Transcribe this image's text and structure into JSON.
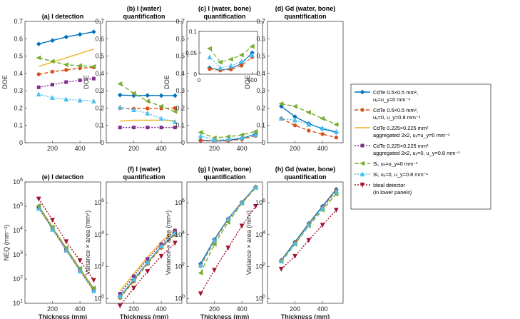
{
  "figure": {
    "xlabel": "Thickness (mm)",
    "legend_position": "right",
    "legend": [
      {
        "key": "cdte05",
        "lines": [
          "CdTe 0.5×0.5 mm²,",
          "uₓ=u_y=0 mm⁻¹"
        ],
        "color": "#0072BD",
        "dash": "",
        "marker": "diamond"
      },
      {
        "key": "cdte05u",
        "lines": [
          "CdTe 0.5×0.5 mm²,",
          "uₓ=0, u_y=0.8 mm⁻¹"
        ],
        "color": "#D95319",
        "dash": "5,3",
        "marker": "circle"
      },
      {
        "key": "cdte0225",
        "lines": [
          "CdTe 0.225×0.225 mm²",
          "aggregated 2x2, uₓ=u_y=0 mm⁻¹"
        ],
        "color": "#EDB120",
        "dash": "",
        "marker": "none"
      },
      {
        "key": "cdte0225u",
        "lines": [
          "CdTe 0.225×0.225 mm²",
          "aggregated 2x2, uₓ=0, u_y=0.8 mm⁻¹"
        ],
        "color": "#7E2F8E",
        "dash": "2,2",
        "marker": "square"
      },
      {
        "key": "si",
        "lines": [
          "Si, uₓ=u_y=0 mm⁻¹"
        ],
        "color": "#77AC30",
        "dash": "6,3",
        "marker": "triangle-left"
      },
      {
        "key": "siu",
        "lines": [
          "Si, uₓ=0, u_y=0.8 mm⁻¹"
        ],
        "color": "#4DBEEE",
        "dash": "2,2",
        "marker": "triangle-up"
      },
      {
        "key": "ideal",
        "lines": [
          "Ideal detector",
          "(in lower panels)"
        ],
        "color": "#A2142F",
        "dash": "2,2",
        "marker": "triangle-down"
      }
    ]
  },
  "chart_data": [
    {
      "id": "a",
      "type": "line",
      "title": [
        "(a) I detection"
      ],
      "ylabel": "DOE",
      "xlim": [
        0,
        550
      ],
      "ylim": [
        0,
        0.7
      ],
      "xticks": [
        200,
        400
      ],
      "yticks": [
        0,
        0.1,
        0.2,
        0.3,
        0.4,
        0.5,
        0.6,
        0.7
      ],
      "yscale": "linear",
      "x": [
        100,
        200,
        300,
        400,
        500
      ],
      "series": [
        {
          "key": "cdte05",
          "values": [
            0.57,
            0.59,
            0.61,
            0.625,
            0.64
          ]
        },
        {
          "key": "cdte05u",
          "values": [
            0.395,
            0.41,
            0.42,
            0.43,
            0.435
          ]
        },
        {
          "key": "cdte0225",
          "values": [
            0.44,
            0.465,
            0.49,
            0.515,
            0.54
          ]
        },
        {
          "key": "cdte0225u",
          "values": [
            0.32,
            0.335,
            0.35,
            0.36,
            0.37
          ]
        },
        {
          "key": "si",
          "values": [
            0.49,
            0.47,
            0.45,
            0.445,
            0.44
          ]
        },
        {
          "key": "siu",
          "values": [
            0.28,
            0.26,
            0.25,
            0.245,
            0.24
          ]
        }
      ]
    },
    {
      "id": "b",
      "type": "line",
      "title": [
        "(b) I (water)",
        "quantification"
      ],
      "ylabel": "DOE",
      "xlim": [
        0,
        550
      ],
      "ylim": [
        0,
        0.7
      ],
      "xticks": [
        200,
        400
      ],
      "yticks": [
        0,
        0.1,
        0.2,
        0.3,
        0.4,
        0.5,
        0.6,
        0.7
      ],
      "yscale": "linear",
      "x": [
        100,
        200,
        300,
        400,
        500
      ],
      "series": [
        {
          "key": "cdte05",
          "values": [
            0.275,
            0.272,
            0.273,
            0.272,
            0.272
          ]
        },
        {
          "key": "cdte05u",
          "values": [
            0.2,
            0.196,
            0.198,
            0.198,
            0.2
          ]
        },
        {
          "key": "cdte0225",
          "values": [
            0.125,
            0.13,
            0.13,
            0.13,
            0.128
          ]
        },
        {
          "key": "cdte0225u",
          "values": [
            0.088,
            0.088,
            0.088,
            0.088,
            0.088
          ]
        },
        {
          "key": "si",
          "values": [
            0.34,
            0.285,
            0.24,
            0.21,
            0.18
          ]
        },
        {
          "key": "siu",
          "values": [
            0.205,
            0.19,
            0.17,
            0.14,
            0.12
          ]
        }
      ]
    },
    {
      "id": "c",
      "type": "line",
      "title": [
        "(c) I (water, bone)",
        "quantification"
      ],
      "ylabel": "DOE",
      "xlim": [
        0,
        550
      ],
      "ylim": [
        0,
        0.7
      ],
      "xticks": [
        200,
        400
      ],
      "yticks": [
        0,
        0.1,
        0.2,
        0.3,
        0.4,
        0.5,
        0.6,
        0.7
      ],
      "yscale": "linear",
      "x": [
        100,
        200,
        300,
        400,
        500
      ],
      "series": [
        {
          "key": "cdte05",
          "values": [
            0.015,
            0.01,
            0.013,
            0.025,
            0.05
          ]
        },
        {
          "key": "cdte05u",
          "values": [
            0.012,
            0.009,
            0.011,
            0.02,
            0.04
          ]
        },
        {
          "key": "si",
          "values": [
            0.06,
            0.028,
            0.035,
            0.045,
            0.065
          ]
        },
        {
          "key": "siu",
          "values": [
            0.04,
            0.015,
            0.02,
            0.03,
            0.045
          ]
        }
      ],
      "inset": {
        "xlim": [
          0,
          550
        ],
        "ylim": [
          0,
          0.1
        ],
        "xticks": [
          0,
          500
        ],
        "yticks": [
          0,
          0.05,
          0.1
        ]
      }
    },
    {
      "id": "d",
      "type": "line",
      "title": [
        "(d) Gd (water, bone)",
        "quantification"
      ],
      "ylabel": "DOE",
      "xlim": [
        0,
        550
      ],
      "ylim": [
        0,
        0.7
      ],
      "xticks": [
        200,
        400
      ],
      "yticks": [
        0,
        0.1,
        0.2,
        0.3,
        0.4,
        0.5,
        0.6,
        0.7
      ],
      "yscale": "linear",
      "x": [
        100,
        200,
        300,
        400,
        500
      ],
      "series": [
        {
          "key": "cdte05",
          "values": [
            0.21,
            0.15,
            0.11,
            0.08,
            0.06
          ]
        },
        {
          "key": "cdte05u",
          "values": [
            0.14,
            0.1,
            0.07,
            0.05,
            0.03
          ]
        },
        {
          "key": "si",
          "values": [
            0.225,
            0.21,
            0.175,
            0.14,
            0.105
          ]
        },
        {
          "key": "siu",
          "values": [
            0.14,
            0.13,
            0.105,
            0.085,
            0.065
          ]
        }
      ]
    },
    {
      "id": "e",
      "type": "line",
      "title": [
        "(e) I detection"
      ],
      "ylabel": "NEQ (mm⁻²)",
      "xlim": [
        0,
        550
      ],
      "ylim": [
        10,
        1000000
      ],
      "xticks": [
        200,
        400
      ],
      "yticks": [
        10,
        100,
        1000,
        10000,
        100000,
        1000000
      ],
      "yscale": "log",
      "x": [
        100,
        200,
        300,
        400,
        500
      ],
      "series": [
        {
          "key": "cdte05",
          "values": [
            100000,
            13000,
            1800,
            260,
            40
          ]
        },
        {
          "key": "cdte05u",
          "values": [
            90000,
            12000,
            1600,
            230,
            35
          ]
        },
        {
          "key": "cdte0225",
          "values": [
            95000,
            12500,
            1700,
            250,
            38
          ]
        },
        {
          "key": "cdte0225u",
          "values": [
            85000,
            11500,
            1550,
            220,
            33
          ]
        },
        {
          "key": "si",
          "values": [
            105000,
            14000,
            1900,
            270,
            42
          ]
        },
        {
          "key": "siu",
          "values": [
            80000,
            11000,
            1500,
            210,
            32
          ]
        },
        {
          "key": "ideal",
          "values": [
            200000,
            27000,
            3500,
            580,
            90
          ]
        }
      ]
    },
    {
      "id": "f",
      "type": "line",
      "title": [
        "(f) I (water)",
        "quantification"
      ],
      "ylabel": "Variance × area (mm⁴)",
      "xlim": [
        0,
        550
      ],
      "ylim": [
        0.5,
        20000000
      ],
      "xticks": [
        200,
        400
      ],
      "yticks": [
        1,
        100,
        10000,
        1000000
      ],
      "yscale": "log",
      "x": [
        100,
        200,
        300,
        400,
        500
      ],
      "series": [
        {
          "key": "cdte05",
          "values": [
            1.3,
            15,
            180,
            1800,
            12000
          ]
        },
        {
          "key": "cdte05u",
          "values": [
            1.1,
            12,
            150,
            1500,
            10000
          ]
        },
        {
          "key": "cdte0225",
          "values": [
            3,
            35,
            400,
            3500,
            25000
          ]
        },
        {
          "key": "cdte0225u",
          "values": [
            2,
            25,
            300,
            2500,
            18000
          ]
        },
        {
          "key": "si",
          "values": [
            1.2,
            14,
            170,
            1700,
            11000
          ]
        },
        {
          "key": "siu",
          "values": [
            1.4,
            16,
            190,
            1900,
            13000
          ]
        },
        {
          "key": "ideal",
          "values": [
            0.35,
            4.5,
            50,
            450,
            3000
          ]
        }
      ]
    },
    {
      "id": "g",
      "type": "line",
      "title": [
        "(g) I (water, bone)",
        "quantification"
      ],
      "ylabel": "Variance × area (mm⁴)",
      "xlim": [
        0,
        550
      ],
      "ylim": [
        0.5,
        20000000
      ],
      "xticks": [
        200,
        400
      ],
      "yticks": [
        1,
        100,
        10000,
        1000000
      ],
      "yscale": "log",
      "x": [
        100,
        200,
        300,
        400,
        500
      ],
      "series": [
        {
          "key": "cdte05",
          "values": [
            150,
            5000,
            100000,
            1100000,
            10000000
          ]
        },
        {
          "key": "cdte05u",
          "values": [
            110,
            4000,
            90000,
            1000000,
            9000000
          ]
        },
        {
          "key": "si",
          "values": [
            40,
            2500,
            60000,
            900000,
            8500000
          ]
        },
        {
          "key": "siu",
          "values": [
            120,
            4500,
            95000,
            1050000,
            9500000
          ]
        },
        {
          "key": "ideal",
          "values": [
            2,
            60,
            1500,
            35000,
            600000
          ]
        }
      ]
    },
    {
      "id": "h",
      "type": "line",
      "title": [
        "(h) Gd (water, bone)",
        "quantification"
      ],
      "ylabel": "Variance × area (mm⁴)",
      "xlim": [
        0,
        550
      ],
      "ylim": [
        0.5,
        20000000
      ],
      "xticks": [
        200,
        400
      ],
      "yticks": [
        1,
        100,
        10000,
        1000000
      ],
      "yscale": "log",
      "x": [
        100,
        200,
        300,
        400,
        500
      ],
      "series": [
        {
          "key": "cdte05",
          "values": [
            250,
            3500,
            50000,
            600000,
            7000000
          ]
        },
        {
          "key": "cdte05u",
          "values": [
            230,
            3000,
            45000,
            500000,
            6000000
          ]
        },
        {
          "key": "si",
          "values": [
            200,
            2500,
            35000,
            350000,
            3500000
          ]
        },
        {
          "key": "siu",
          "values": [
            220,
            2800,
            40000,
            450000,
            5000000
          ]
        },
        {
          "key": "ideal",
          "values": [
            70,
            450,
            4500,
            40000,
            350000
          ]
        }
      ]
    }
  ]
}
